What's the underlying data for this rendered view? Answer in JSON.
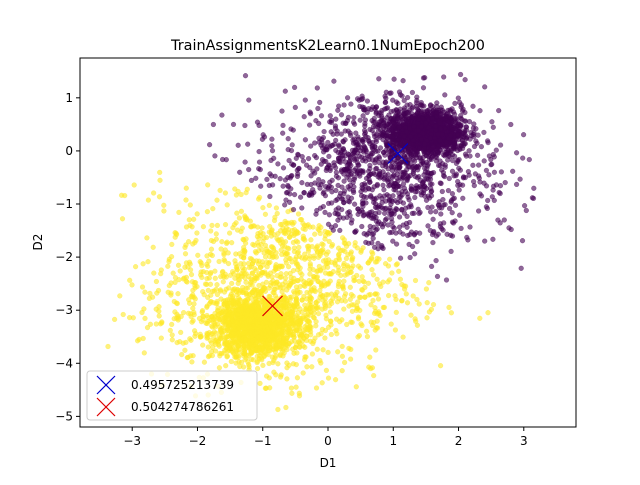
{
  "chart_data": {
    "type": "scatter",
    "title": "TrainAssignmentsK2Learn0.1NumEpoch200",
    "xlabel": "D1",
    "ylabel": "D2",
    "xlim": [
      -3.8,
      3.8
    ],
    "ylim": [
      -5.2,
      1.75
    ],
    "xticks": [
      "−3",
      "−2",
      "−1",
      "0",
      "1",
      "2",
      "3"
    ],
    "xtick_values": [
      -3,
      -2,
      -1,
      0,
      1,
      2,
      3
    ],
    "yticks": [
      "1",
      "0",
      "−1",
      "−2",
      "−3",
      "−4",
      "−5"
    ],
    "ytick_values": [
      1,
      0,
      -1,
      -2,
      -3,
      -4,
      -5
    ],
    "grid": false,
    "legend_position": "lower-left",
    "clusters": [
      {
        "color": "#440154",
        "dense_center": [
          1.5,
          0.35
        ],
        "dense_spread": [
          0.28,
          0.2
        ],
        "diffuse_region": "above the diagonal boundary, x from -2 to 3.4, y from -3.3 to 1.5"
      },
      {
        "color": "#fde725",
        "dense_center": [
          -1.1,
          -3.3
        ],
        "dense_spread": [
          0.32,
          0.28
        ],
        "diffuse_region": "below the diagonal boundary, x from -3.6 to 2.5, y from -4.9 to -0.5"
      }
    ],
    "centroids": [
      {
        "name": "0.495725213739",
        "x": 1.07,
        "y": -0.05,
        "color": "#0000cc",
        "marker": "x"
      },
      {
        "name": "0.504274786261",
        "x": -0.85,
        "y": -2.92,
        "color": "#dd0000",
        "marker": "x"
      }
    ]
  }
}
